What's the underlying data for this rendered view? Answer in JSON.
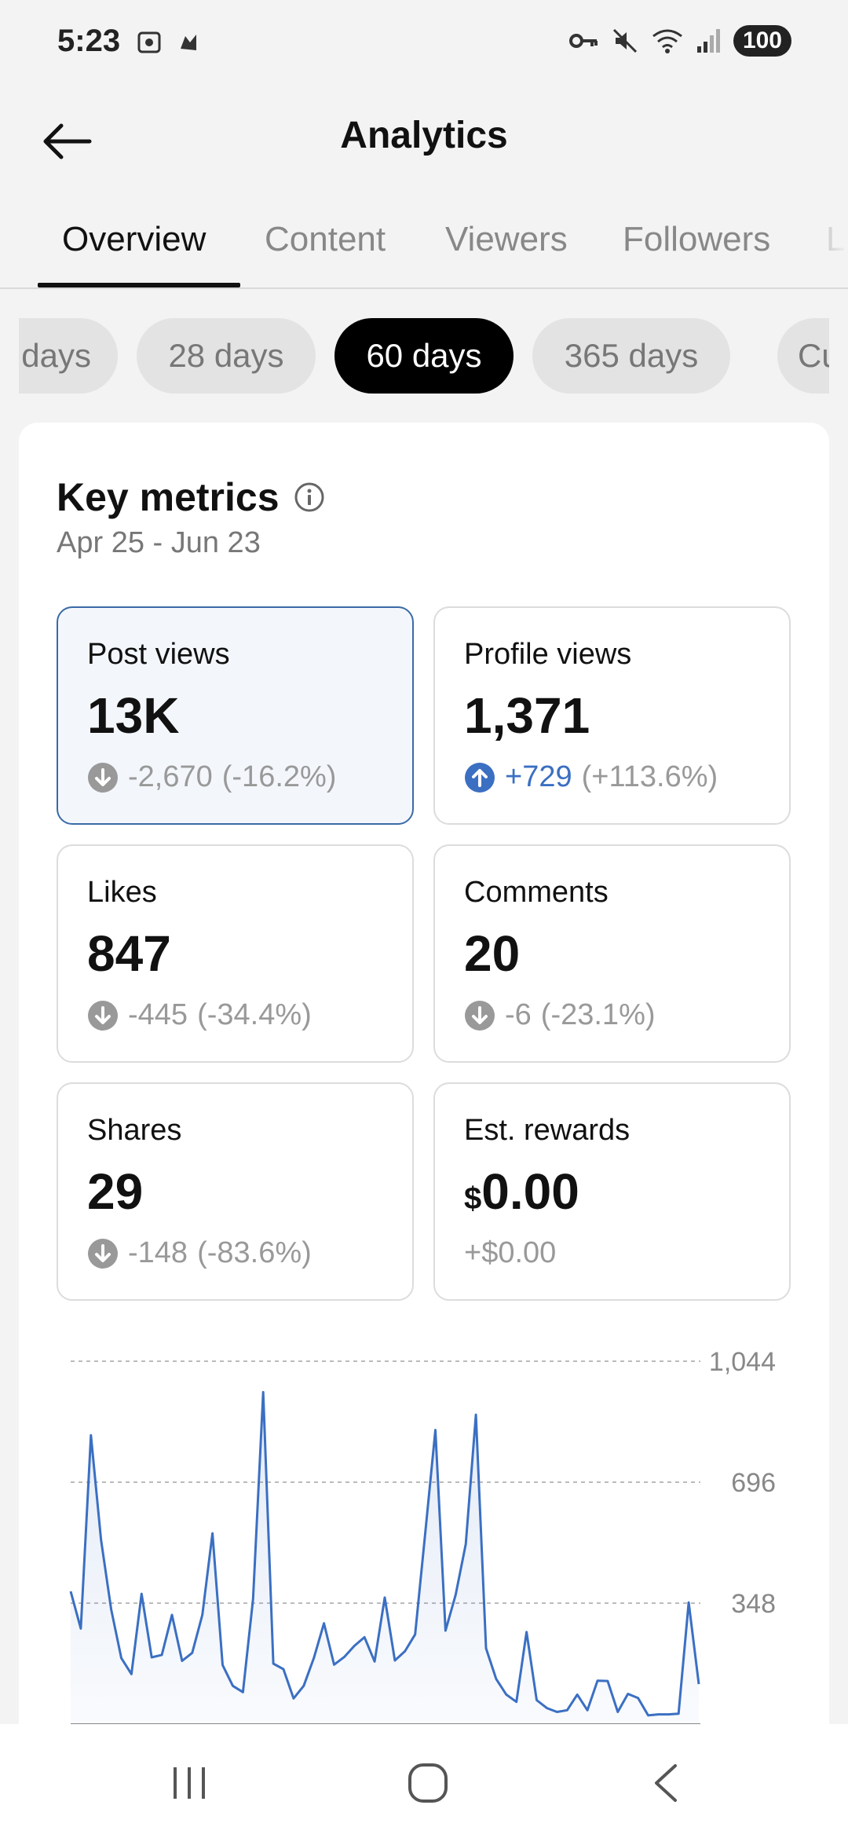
{
  "status_bar": {
    "time": "5:23",
    "battery": "100",
    "icons": [
      "screenshot-icon",
      "notification-icon",
      "vpn-key-icon",
      "mute-icon",
      "wifi-icon",
      "signal-icon"
    ]
  },
  "header": {
    "title": "Analytics",
    "back_icon": "back-arrow-icon"
  },
  "tabs": [
    {
      "label": "Overview",
      "active": true
    },
    {
      "label": "Content",
      "active": false
    },
    {
      "label": "Viewers",
      "active": false
    },
    {
      "label": "Followers",
      "active": false
    },
    {
      "label": "L",
      "active": false
    }
  ],
  "date_chips": [
    {
      "label": "days",
      "active": false
    },
    {
      "label": "28 days",
      "active": false
    },
    {
      "label": "60 days",
      "active": true
    },
    {
      "label": "365 days",
      "active": false
    },
    {
      "label": "Cus",
      "active": false
    }
  ],
  "key_metrics": {
    "title": "Key metrics",
    "date_range": "Apr 25 - Jun 23",
    "cards": [
      {
        "label": "Post views",
        "value": "13K",
        "change": "-2,670",
        "change_pct": "(-16.2%)",
        "direction": "down",
        "selected": true
      },
      {
        "label": "Profile views",
        "value": "1,371",
        "change": "+729",
        "change_pct": "(+113.6%)",
        "direction": "up",
        "selected": false
      },
      {
        "label": "Likes",
        "value": "847",
        "change": "-445",
        "change_pct": "(-34.4%)",
        "direction": "down",
        "selected": false
      },
      {
        "label": "Comments",
        "value": "20",
        "change": "-6",
        "change_pct": "(-23.1%)",
        "direction": "down",
        "selected": false
      },
      {
        "label": "Shares",
        "value": "29",
        "change": "-148",
        "change_pct": "(-83.6%)",
        "direction": "down",
        "selected": false
      },
      {
        "label": "Est. rewards",
        "currency": "$",
        "value": "0.00",
        "change": "+$0.00",
        "change_pct": "",
        "direction": "none",
        "selected": false
      }
    ]
  },
  "chart_data": {
    "type": "area",
    "ylim": [
      0,
      1044
    ],
    "y_ticks": [
      "1,044",
      "696",
      "348"
    ],
    "grid": true,
    "color": "#3b6fc2",
    "values": [
      382,
      275,
      831,
      530,
      330,
      190,
      144,
      375,
      192,
      199,
      314,
      182,
      205,
      314,
      549,
      170,
      110,
      92,
      360,
      955,
      174,
      158,
      74,
      110,
      190,
      290,
      171,
      193,
      225,
      250,
      180,
      364,
      183,
      210,
      258,
      550,
      846,
      269,
      372,
      518,
      890,
      218,
      130,
      85,
      64,
      265,
      69,
      46,
      35,
      40,
      85,
      40,
      125,
      124,
      35,
      87,
      75,
      25,
      28,
      28,
      30,
      350,
      115
    ]
  },
  "colors": {
    "accent": "#3b6fc2",
    "selected_border": "#3b6aa6",
    "chip_active": "#000000"
  }
}
